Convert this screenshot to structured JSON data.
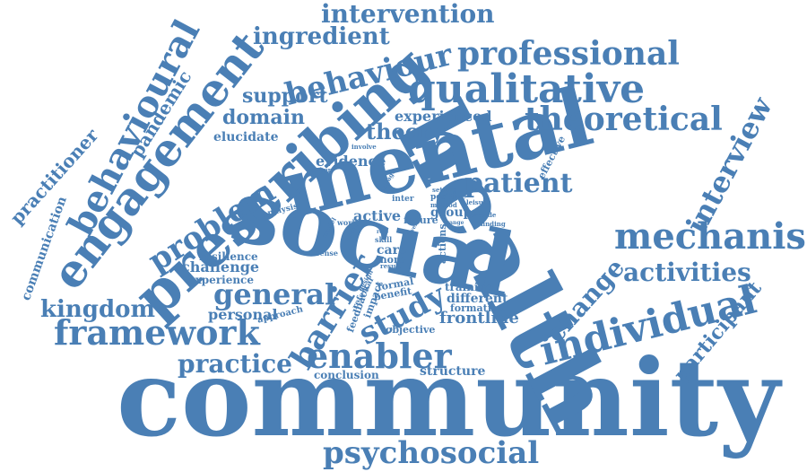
{
  "color": "#4a7fb5",
  "words": {
    "community": "community",
    "health": "health",
    "social": "social",
    "mental": "mental",
    "prescribing": "prescribing",
    "engagement": "engagement",
    "behavioural": "behavioural",
    "qualitative": "qualitative",
    "theoretical": "theoretical",
    "professional": "professional",
    "behaviour": "behaviour",
    "intervention": "intervention",
    "ingredient": "ingredient",
    "mechanism": "mechanism",
    "individual": "individual",
    "framework": "framework",
    "enabler": "enabler",
    "psychosocial": "psychosocial",
    "barrier": "barrier",
    "study": "study",
    "general": "general",
    "kingdom": "kingdom",
    "practice": "practice",
    "activities": "activities",
    "change": "change",
    "interview": "interview",
    "participant": "participant",
    "patient": "patient",
    "problem": "problem",
    "practitioner": "practitioner",
    "pandemic": "pandemic",
    "communication": "communication",
    "support": "support",
    "domain": "domain",
    "elucidate": "elucidate",
    "theory": "theory",
    "evidence": "evidence",
    "experienced": "experienced",
    "frontline": "frontline",
    "challenge": "challenge",
    "resilience": "resilience",
    "experience": "experience",
    "personal": "personal",
    "approach": "approach",
    "conclusion": "conclusion",
    "structure": "structure",
    "objective": "objective",
    "formation": "formation",
    "different": "different",
    "training": "training",
    "active": "active",
    "group": "group",
    "care": "care",
    "more": "more",
    "future": "future",
    "effective": "effective",
    "involve": "involve",
    "worker": "worker",
    "engage": "engage",
    "inter": "inter",
    "setting": "setting",
    "positive": "positive",
    "method": "method",
    "leisure": "leisure",
    "provide": "provide",
    "finding": "finding",
    "analysis": "analysis",
    "work": "work",
    "skill": "skill",
    "sense": "sense",
    "model": "model",
    "order": "order",
    "result": "result",
    "actions": "actions",
    "formal": "formal",
    "benefit": "benefit",
    "impact": "impact",
    "feedback": "feedback",
    "referral": "referral",
    "design": "design",
    "range": "range",
    "level": "level",
    "role": "role"
  }
}
